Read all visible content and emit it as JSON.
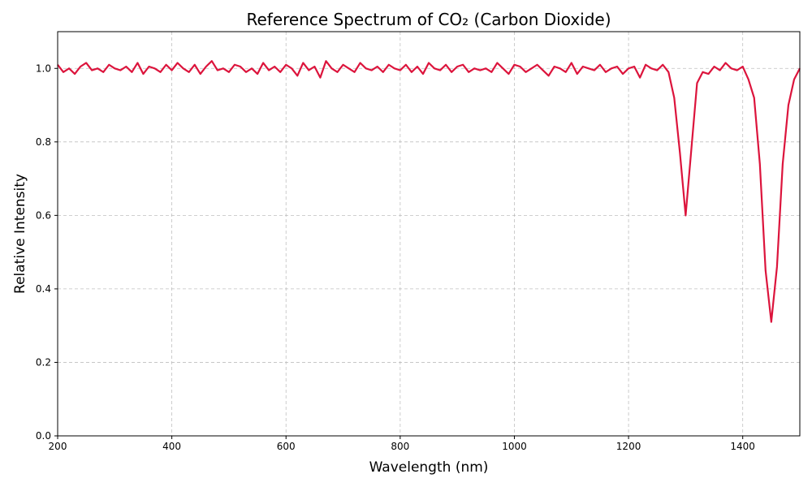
{
  "chart_data": {
    "type": "line",
    "title": "Reference Spectrum of CO₂ (Carbon Dioxide)",
    "x_label": "Wavelength (nm)",
    "y_label": "Relative Intensity",
    "x": [
      200,
      210,
      220,
      230,
      240,
      250,
      260,
      270,
      280,
      290,
      300,
      310,
      320,
      330,
      340,
      350,
      360,
      370,
      380,
      390,
      400,
      410,
      420,
      430,
      440,
      450,
      460,
      470,
      480,
      490,
      500,
      510,
      520,
      530,
      540,
      550,
      560,
      570,
      580,
      590,
      600,
      610,
      620,
      630,
      640,
      650,
      660,
      670,
      680,
      690,
      700,
      710,
      720,
      730,
      740,
      750,
      760,
      770,
      780,
      790,
      800,
      810,
      820,
      830,
      840,
      850,
      860,
      870,
      880,
      890,
      900,
      910,
      920,
      930,
      940,
      950,
      960,
      970,
      980,
      990,
      1000,
      1010,
      1020,
      1030,
      1040,
      1050,
      1060,
      1070,
      1080,
      1090,
      1100,
      1110,
      1120,
      1130,
      1140,
      1150,
      1160,
      1170,
      1180,
      1190,
      1200,
      1210,
      1220,
      1230,
      1240,
      1250,
      1260,
      1270,
      1280,
      1290,
      1300,
      1310,
      1320,
      1330,
      1340,
      1350,
      1360,
      1370,
      1380,
      1390,
      1400,
      1410,
      1420,
      1430,
      1440,
      1450,
      1460,
      1470,
      1480,
      1490,
      1500
    ],
    "series": [
      {
        "color": "#dc143c",
        "values": [
          1.01,
          0.99,
          1.0,
          0.985,
          1.005,
          1.015,
          0.995,
          1.0,
          0.99,
          1.01,
          1.0,
          0.995,
          1.005,
          0.99,
          1.015,
          0.985,
          1.005,
          1.0,
          0.99,
          1.01,
          0.995,
          1.015,
          1.0,
          0.99,
          1.01,
          0.985,
          1.005,
          1.02,
          0.995,
          1.0,
          0.99,
          1.01,
          1.005,
          0.99,
          1.0,
          0.985,
          1.015,
          0.995,
          1.005,
          0.99,
          1.01,
          1.0,
          0.98,
          1.015,
          0.995,
          1.005,
          0.975,
          1.02,
          1.0,
          0.99,
          1.01,
          1.0,
          0.99,
          1.015,
          1.0,
          0.995,
          1.005,
          0.99,
          1.01,
          1.0,
          0.995,
          1.01,
          0.99,
          1.005,
          0.985,
          1.015,
          1.0,
          0.995,
          1.01,
          0.99,
          1.005,
          1.01,
          0.99,
          1.0,
          0.995,
          1.0,
          0.99,
          1.015,
          1.0,
          0.985,
          1.01,
          1.005,
          0.99,
          1.0,
          1.01,
          0.995,
          0.98,
          1.005,
          1.0,
          0.99,
          1.015,
          0.985,
          1.005,
          1.0,
          0.995,
          1.01,
          0.99,
          1.0,
          1.005,
          0.985,
          1.0,
          1.005,
          0.975,
          1.01,
          1.0,
          0.995,
          1.01,
          0.99,
          0.92,
          0.77,
          0.6,
          0.78,
          0.96,
          0.99,
          0.985,
          1.005,
          0.995,
          1.015,
          1.0,
          0.995,
          1.005,
          0.97,
          0.92,
          0.74,
          0.45,
          0.31,
          0.46,
          0.74,
          0.9,
          0.97,
          1.0
        ]
      }
    ],
    "xlim": [
      200,
      1500
    ],
    "xticks": [
      200,
      400,
      600,
      800,
      1000,
      1200,
      1400
    ],
    "ylim": [
      0,
      1.1
    ],
    "yticks": [
      {
        "value": 0,
        "label": "0.0"
      },
      0.2,
      0.4,
      0.6,
      0.8,
      {
        "value": 1,
        "label": "1.0"
      }
    ],
    "grid": true
  }
}
